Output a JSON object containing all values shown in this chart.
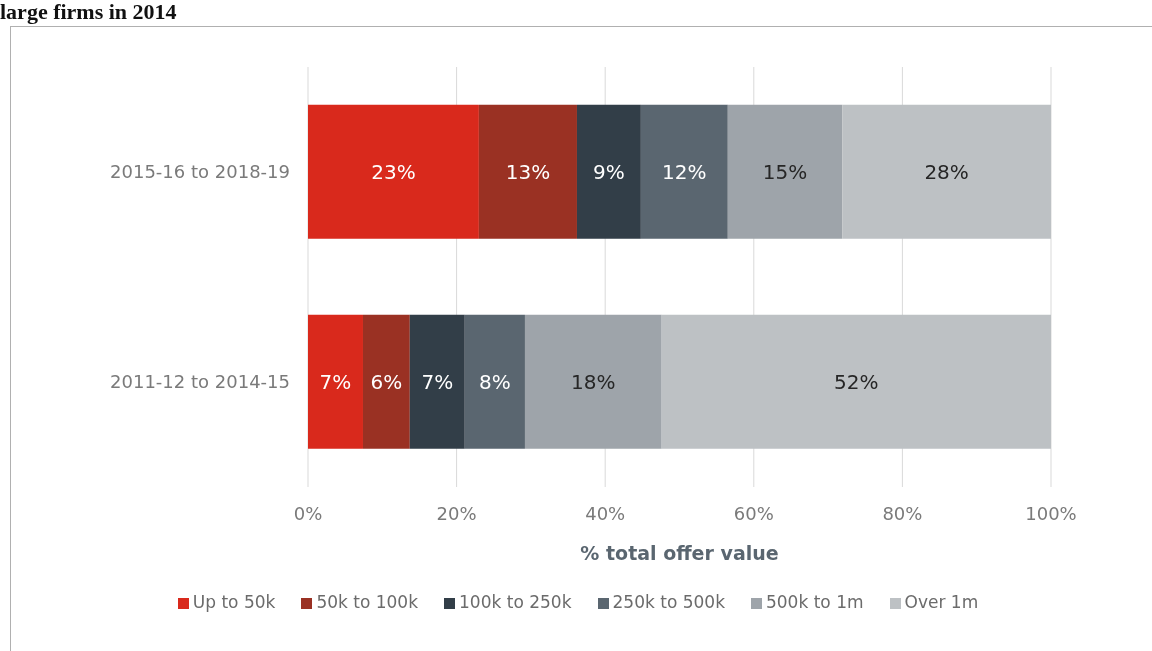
{
  "chart_data": {
    "type": "bar",
    "orientation": "horizontal",
    "stacked": true,
    "title": "large firms in 2014",
    "xlabel": "% total offer value",
    "categories": [
      "2015-16 to 2018-19",
      "2011-12 to 2014-15"
    ],
    "series": [
      {
        "name": "Up to 50k",
        "color": "#d9291c",
        "values": [
          23.0,
          7.4
        ],
        "value_labels": [
          "23%",
          "7%"
        ]
      },
      {
        "name": "50k to 100k",
        "color": "#9a3123",
        "values": [
          13.2,
          6.3
        ],
        "value_labels": [
          "13%",
          "6%"
        ]
      },
      {
        "name": "100k to 250k",
        "color": "#323e48",
        "values": [
          8.6,
          7.4
        ],
        "value_labels": [
          "9%",
          "7%"
        ]
      },
      {
        "name": "250k to 500k",
        "color": "#5a6670",
        "values": [
          11.7,
          8.1
        ],
        "value_labels": [
          "12%",
          "8%"
        ]
      },
      {
        "name": "500k to 1m",
        "color": "#9ea4aa",
        "values": [
          15.4,
          18.4
        ],
        "value_labels": [
          "15%",
          "18%"
        ]
      },
      {
        "name": "Over 1m",
        "color": "#bdc1c4",
        "values": [
          28.1,
          52.4
        ],
        "value_labels": [
          "28%",
          "52%"
        ]
      }
    ],
    "xlim": [
      0,
      100
    ],
    "xticks": [
      {
        "value": 0,
        "label": "0%"
      },
      {
        "value": 20,
        "label": "20%"
      },
      {
        "value": 40,
        "label": "40%"
      },
      {
        "value": 60,
        "label": "60%"
      },
      {
        "value": 80,
        "label": "80%"
      },
      {
        "value": 100,
        "label": "100%"
      }
    ],
    "grid": "x",
    "legend": "bottom"
  }
}
